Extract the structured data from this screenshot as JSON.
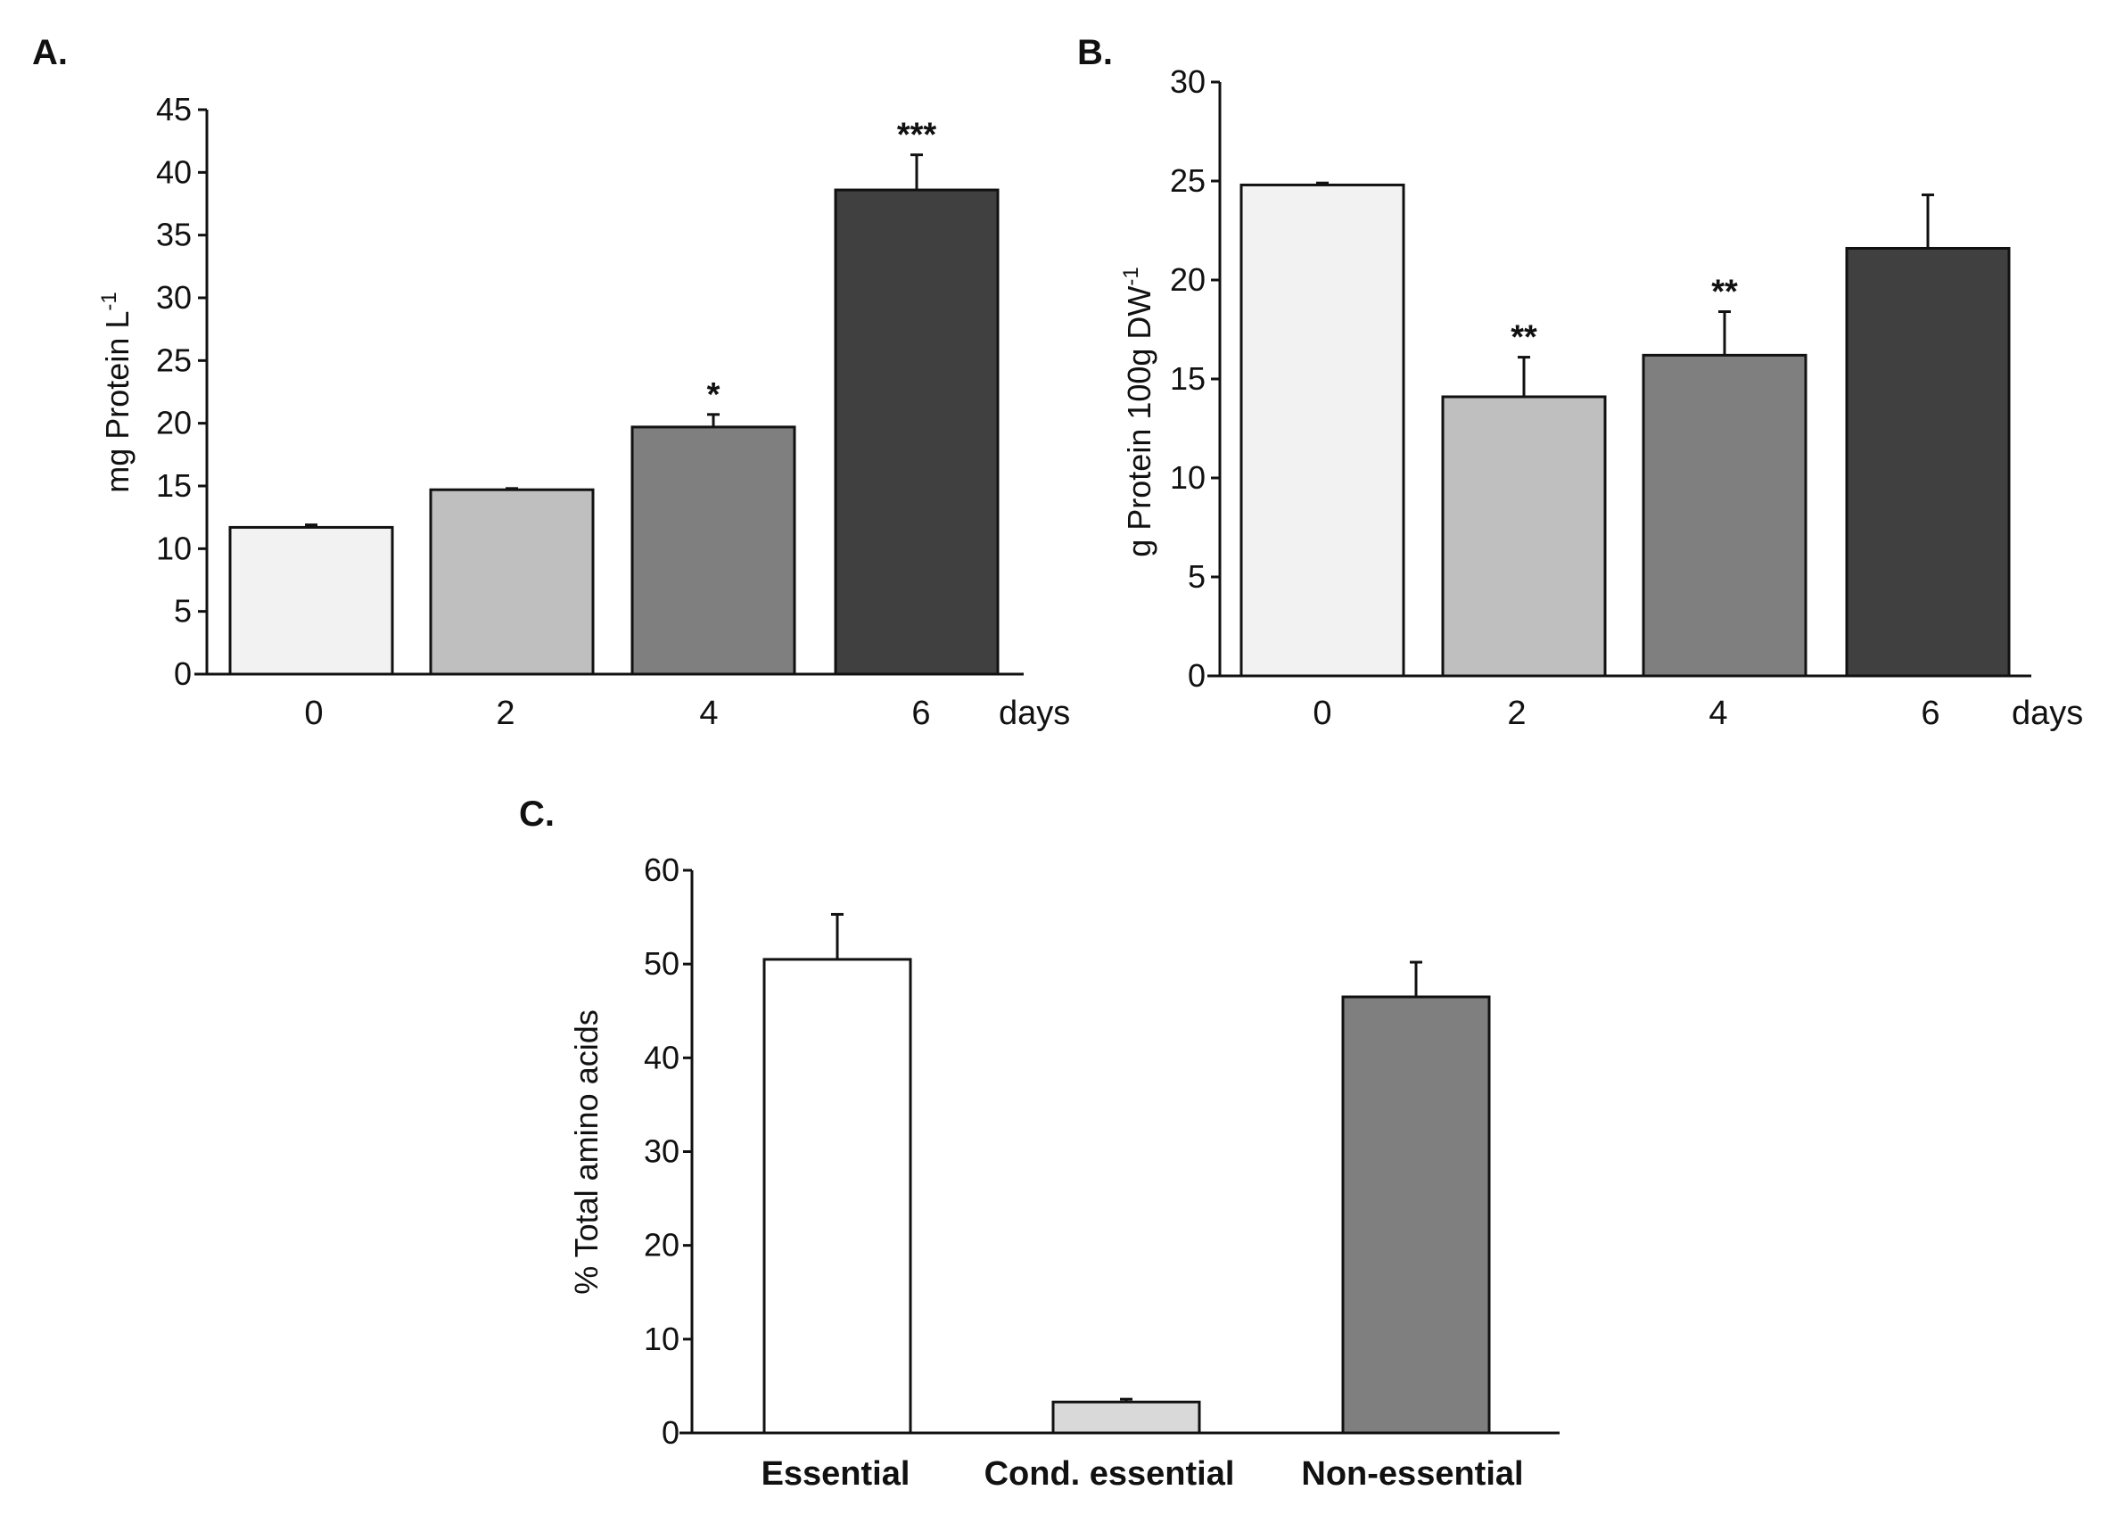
{
  "chart_data": [
    {
      "id": "A",
      "type": "bar",
      "panel_label": "A.",
      "title": "",
      "xlabel": "days",
      "ylabel_main": "mg Protein L",
      "ylabel_sup": "-1",
      "ylim": [
        0,
        45
      ],
      "yticks": [
        0,
        5,
        10,
        15,
        20,
        25,
        30,
        35,
        40,
        45
      ],
      "categories": [
        "0",
        "2",
        "4",
        "6"
      ],
      "values": [
        11.7,
        14.7,
        19.7,
        38.6
      ],
      "errors": [
        0.2,
        0.1,
        1.0,
        2.8
      ],
      "significance": [
        "",
        "",
        "*",
        "***"
      ],
      "colors": [
        "#f2f2f2",
        "#bfbfbf",
        "#7f7f7f",
        "#404040"
      ]
    },
    {
      "id": "B",
      "type": "bar",
      "panel_label": "B.",
      "title": "",
      "xlabel": "days",
      "ylabel_main": "g Protein 100g DW",
      "ylabel_sup": "-1",
      "ylim": [
        0,
        30
      ],
      "yticks": [
        0,
        5,
        10,
        15,
        20,
        25,
        30
      ],
      "categories": [
        "0",
        "2",
        "4",
        "6"
      ],
      "values": [
        24.8,
        14.1,
        16.2,
        21.6
      ],
      "errors": [
        0.1,
        2.0,
        2.2,
        2.7
      ],
      "significance": [
        "",
        "**",
        "**",
        ""
      ],
      "colors": [
        "#f2f2f2",
        "#bfbfbf",
        "#7f7f7f",
        "#404040"
      ]
    },
    {
      "id": "C",
      "type": "bar",
      "panel_label": "C.",
      "title": "",
      "xlabel": "",
      "ylabel_main": "% Total amino acids",
      "ylabel_sup": "",
      "ylim": [
        0,
        60
      ],
      "yticks": [
        0,
        10,
        20,
        30,
        40,
        50,
        60
      ],
      "categories": [
        "Essential",
        "Cond. essential",
        "Non-essential"
      ],
      "values": [
        50.5,
        3.3,
        46.5
      ],
      "errors": [
        4.8,
        0.3,
        3.7
      ],
      "significance": [
        "",
        "",
        ""
      ],
      "colors": [
        "#ffffff",
        "#d9d9d9",
        "#7f7f7f"
      ]
    }
  ]
}
